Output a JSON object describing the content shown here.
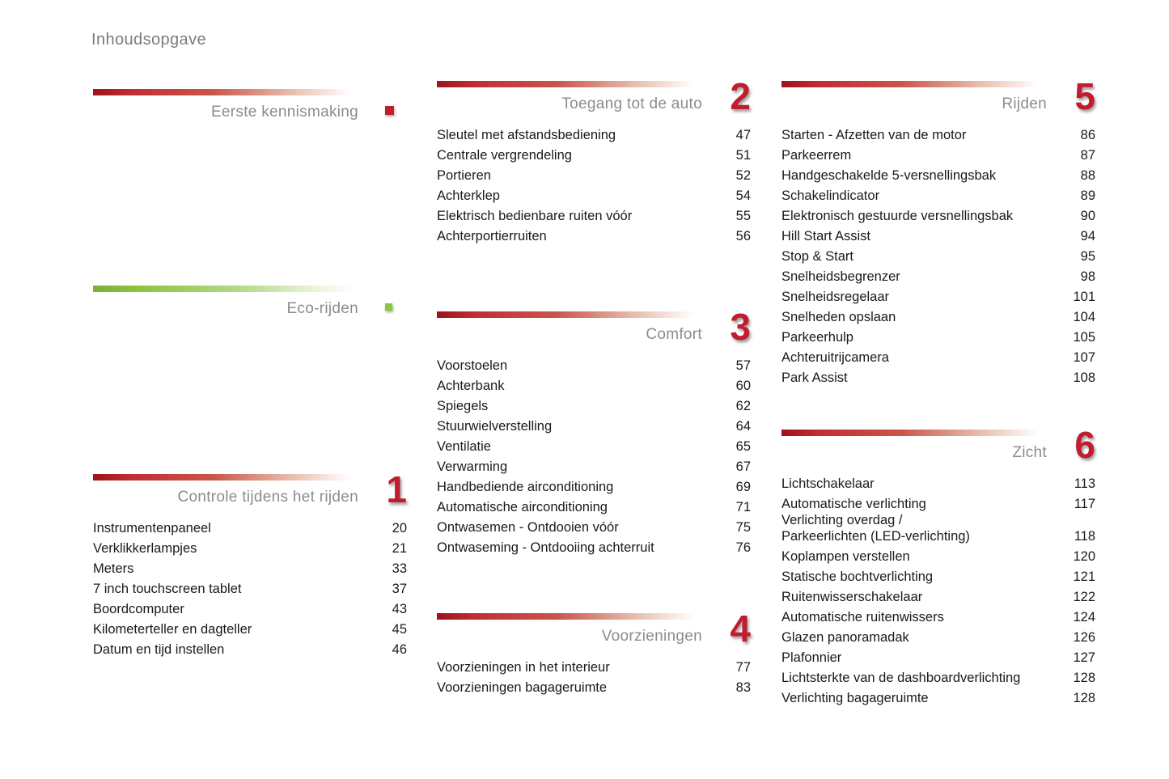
{
  "page_title": "Inhoudsopgave",
  "colors": {
    "accent_red": "#c01d2e",
    "accent_green": "#8cc63f",
    "title_gray": "#8c8c8c",
    "text_black": "#1a1a1a"
  },
  "sections": [
    {
      "id": "eerste-kennismaking",
      "title": "Eerste kennismaking",
      "number": "",
      "bar_color": "red",
      "marker": "red-square",
      "entries": []
    },
    {
      "id": "eco-rijden",
      "title": "Eco-rijden",
      "number": "",
      "bar_color": "green",
      "marker": "green-square",
      "entries": []
    },
    {
      "id": "controle-tijdens-het-rijden",
      "title": "Controle tijdens het rijden",
      "number": "1",
      "bar_color": "red",
      "entries": [
        {
          "label": "Instrumentenpaneel",
          "page": "20"
        },
        {
          "label": "Verklikkerlampjes",
          "page": "21"
        },
        {
          "label": "Meters",
          "page": "33"
        },
        {
          "label": "7 inch touchscreen tablet",
          "page": "37"
        },
        {
          "label": "Boordcomputer",
          "page": "43"
        },
        {
          "label": "Kilometerteller en dagteller",
          "page": "45"
        },
        {
          "label": "Datum en tijd instellen",
          "page": "46"
        }
      ]
    },
    {
      "id": "toegang-tot-de-auto",
      "title": "Toegang tot de auto",
      "number": "2",
      "bar_color": "red",
      "entries": [
        {
          "label": "Sleutel met afstandsbediening",
          "page": "47"
        },
        {
          "label": "Centrale vergrendeling",
          "page": "51"
        },
        {
          "label": "Portieren",
          "page": "52"
        },
        {
          "label": "Achterklep",
          "page": "54"
        },
        {
          "label": "Elektrisch bedienbare ruiten vóór",
          "page": "55"
        },
        {
          "label": "Achterportierruiten",
          "page": "56"
        }
      ]
    },
    {
      "id": "comfort",
      "title": "Comfort",
      "number": "3",
      "bar_color": "red",
      "entries": [
        {
          "label": "Voorstoelen",
          "page": "57"
        },
        {
          "label": "Achterbank",
          "page": "60"
        },
        {
          "label": "Spiegels",
          "page": "62"
        },
        {
          "label": "Stuurwielverstelling",
          "page": "64"
        },
        {
          "label": "Ventilatie",
          "page": "65"
        },
        {
          "label": "Verwarming",
          "page": "67"
        },
        {
          "label": "Handbediende airconditioning",
          "page": "69"
        },
        {
          "label": "Automatische airconditioning",
          "page": "71"
        },
        {
          "label": "Ontwasemen - Ontdooien vóór",
          "page": "75"
        },
        {
          "label": "Ontwaseming - Ontdooiing achterruit",
          "page": "76"
        }
      ]
    },
    {
      "id": "voorzieningen",
      "title": "Voorzieningen",
      "number": "4",
      "bar_color": "red",
      "entries": [
        {
          "label": "Voorzieningen in het interieur",
          "page": "77"
        },
        {
          "label": "Voorzieningen bagageruimte",
          "page": "83"
        }
      ]
    },
    {
      "id": "rijden",
      "title": "Rijden",
      "number": "5",
      "bar_color": "red",
      "entries": [
        {
          "label": "Starten - Afzetten van de motor",
          "page": "86"
        },
        {
          "label": "Parkeerrem",
          "page": "87"
        },
        {
          "label": "Handgeschakelde 5-versnellingsbak",
          "page": "88"
        },
        {
          "label": "Schakelindicator",
          "page": "89"
        },
        {
          "label": "Elektronisch gestuurde versnellingsbak",
          "page": "90"
        },
        {
          "label": "Hill Start Assist",
          "page": "94"
        },
        {
          "label": "Stop & Start",
          "page": "95"
        },
        {
          "label": "Snelheidsbegrenzer",
          "page": "98"
        },
        {
          "label": "Snelheidsregelaar",
          "page": "101"
        },
        {
          "label": "Snelheden opslaan",
          "page": "104"
        },
        {
          "label": "Parkeerhulp",
          "page": "105"
        },
        {
          "label": "Achteruitrijcamera",
          "page": "107"
        },
        {
          "label": "Park Assist",
          "page": "108"
        }
      ]
    },
    {
      "id": "zicht",
      "title": "Zicht",
      "number": "6",
      "bar_color": "red",
      "entries": [
        {
          "label": "Lichtschakelaar",
          "page": "113"
        },
        {
          "label": "Automatische verlichting",
          "page": "117"
        },
        {
          "label": "Verlichting overdag /\nParkeerlichten (LED-verlichting)",
          "page": "118"
        },
        {
          "label": "Koplampen verstellen",
          "page": "120"
        },
        {
          "label": "Statische bochtverlichting",
          "page": "121"
        },
        {
          "label": "Ruitenwisserschakelaar",
          "page": "122"
        },
        {
          "label": "Automatische ruitenwissers",
          "page": "124"
        },
        {
          "label": "Glazen panoramadak",
          "page": "126"
        },
        {
          "label": "Plafonnier",
          "page": "127"
        },
        {
          "label": "Lichtsterkte van de dashboardverlichting",
          "page": "128"
        },
        {
          "label": "Verlichting bagageruimte",
          "page": "128"
        }
      ]
    }
  ]
}
